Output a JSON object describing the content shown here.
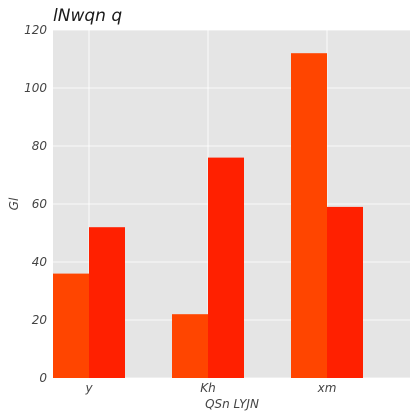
{
  "chart_data": {
    "type": "bar",
    "title": "lNwqn q",
    "xlabel": "QSn LYJN",
    "ylabel": "Gl",
    "categories": [
      "y",
      "Kh",
      "xm"
    ],
    "series": [
      {
        "values": [
          36,
          22,
          112
        ],
        "color": "#ff4500"
      },
      {
        "values": [
          52,
          76,
          59
        ],
        "color": "#ff2000"
      }
    ],
    "ylim": [
      0,
      120
    ],
    "yticks": [
      0,
      20,
      40,
      60,
      80,
      100,
      120
    ],
    "grid": true,
    "background": "#e5e5e5",
    "grid_color": "#ffffff"
  }
}
